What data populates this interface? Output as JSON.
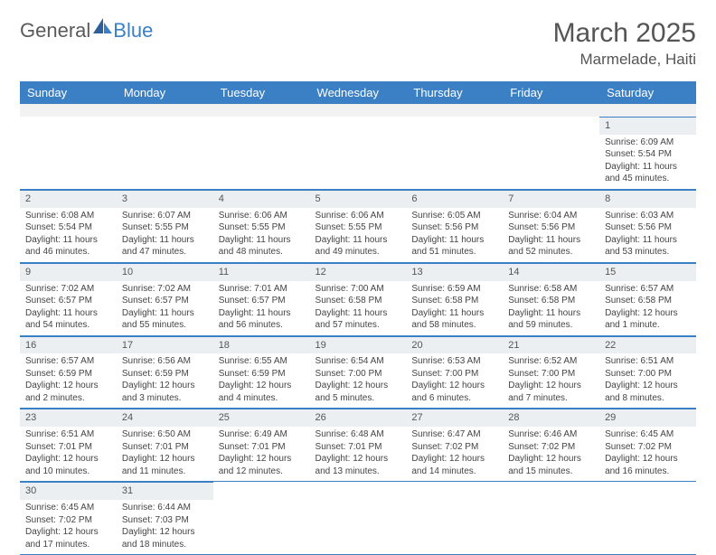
{
  "logo": {
    "text1": "General",
    "text2": "Blue",
    "sail_color": "#3b7fc4"
  },
  "title": "March 2025",
  "location": "Marmelade, Haiti",
  "colors": {
    "header_bg": "#3b7fc4",
    "header_fg": "#ffffff",
    "daynum_bg": "#eceff1",
    "row_divider": "#3b7fc4",
    "text": "#444444",
    "page_bg": "#ffffff"
  },
  "typography": {
    "title_fontsize": 30,
    "location_fontsize": 17,
    "dayheader_fontsize": 13,
    "cell_fontsize": 10
  },
  "day_headers": [
    "Sunday",
    "Monday",
    "Tuesday",
    "Wednesday",
    "Thursday",
    "Friday",
    "Saturday"
  ],
  "weeks": [
    [
      null,
      null,
      null,
      null,
      null,
      null,
      {
        "n": "1",
        "sunrise": "Sunrise: 6:09 AM",
        "sunset": "Sunset: 5:54 PM",
        "daylight": "Daylight: 11 hours and 45 minutes."
      }
    ],
    [
      {
        "n": "2",
        "sunrise": "Sunrise: 6:08 AM",
        "sunset": "Sunset: 5:54 PM",
        "daylight": "Daylight: 11 hours and 46 minutes."
      },
      {
        "n": "3",
        "sunrise": "Sunrise: 6:07 AM",
        "sunset": "Sunset: 5:55 PM",
        "daylight": "Daylight: 11 hours and 47 minutes."
      },
      {
        "n": "4",
        "sunrise": "Sunrise: 6:06 AM",
        "sunset": "Sunset: 5:55 PM",
        "daylight": "Daylight: 11 hours and 48 minutes."
      },
      {
        "n": "5",
        "sunrise": "Sunrise: 6:06 AM",
        "sunset": "Sunset: 5:55 PM",
        "daylight": "Daylight: 11 hours and 49 minutes."
      },
      {
        "n": "6",
        "sunrise": "Sunrise: 6:05 AM",
        "sunset": "Sunset: 5:56 PM",
        "daylight": "Daylight: 11 hours and 51 minutes."
      },
      {
        "n": "7",
        "sunrise": "Sunrise: 6:04 AM",
        "sunset": "Sunset: 5:56 PM",
        "daylight": "Daylight: 11 hours and 52 minutes."
      },
      {
        "n": "8",
        "sunrise": "Sunrise: 6:03 AM",
        "sunset": "Sunset: 5:56 PM",
        "daylight": "Daylight: 11 hours and 53 minutes."
      }
    ],
    [
      {
        "n": "9",
        "sunrise": "Sunrise: 7:02 AM",
        "sunset": "Sunset: 6:57 PM",
        "daylight": "Daylight: 11 hours and 54 minutes."
      },
      {
        "n": "10",
        "sunrise": "Sunrise: 7:02 AM",
        "sunset": "Sunset: 6:57 PM",
        "daylight": "Daylight: 11 hours and 55 minutes."
      },
      {
        "n": "11",
        "sunrise": "Sunrise: 7:01 AM",
        "sunset": "Sunset: 6:57 PM",
        "daylight": "Daylight: 11 hours and 56 minutes."
      },
      {
        "n": "12",
        "sunrise": "Sunrise: 7:00 AM",
        "sunset": "Sunset: 6:58 PM",
        "daylight": "Daylight: 11 hours and 57 minutes."
      },
      {
        "n": "13",
        "sunrise": "Sunrise: 6:59 AM",
        "sunset": "Sunset: 6:58 PM",
        "daylight": "Daylight: 11 hours and 58 minutes."
      },
      {
        "n": "14",
        "sunrise": "Sunrise: 6:58 AM",
        "sunset": "Sunset: 6:58 PM",
        "daylight": "Daylight: 11 hours and 59 minutes."
      },
      {
        "n": "15",
        "sunrise": "Sunrise: 6:57 AM",
        "sunset": "Sunset: 6:58 PM",
        "daylight": "Daylight: 12 hours and 1 minute."
      }
    ],
    [
      {
        "n": "16",
        "sunrise": "Sunrise: 6:57 AM",
        "sunset": "Sunset: 6:59 PM",
        "daylight": "Daylight: 12 hours and 2 minutes."
      },
      {
        "n": "17",
        "sunrise": "Sunrise: 6:56 AM",
        "sunset": "Sunset: 6:59 PM",
        "daylight": "Daylight: 12 hours and 3 minutes."
      },
      {
        "n": "18",
        "sunrise": "Sunrise: 6:55 AM",
        "sunset": "Sunset: 6:59 PM",
        "daylight": "Daylight: 12 hours and 4 minutes."
      },
      {
        "n": "19",
        "sunrise": "Sunrise: 6:54 AM",
        "sunset": "Sunset: 7:00 PM",
        "daylight": "Daylight: 12 hours and 5 minutes."
      },
      {
        "n": "20",
        "sunrise": "Sunrise: 6:53 AM",
        "sunset": "Sunset: 7:00 PM",
        "daylight": "Daylight: 12 hours and 6 minutes."
      },
      {
        "n": "21",
        "sunrise": "Sunrise: 6:52 AM",
        "sunset": "Sunset: 7:00 PM",
        "daylight": "Daylight: 12 hours and 7 minutes."
      },
      {
        "n": "22",
        "sunrise": "Sunrise: 6:51 AM",
        "sunset": "Sunset: 7:00 PM",
        "daylight": "Daylight: 12 hours and 8 minutes."
      }
    ],
    [
      {
        "n": "23",
        "sunrise": "Sunrise: 6:51 AM",
        "sunset": "Sunset: 7:01 PM",
        "daylight": "Daylight: 12 hours and 10 minutes."
      },
      {
        "n": "24",
        "sunrise": "Sunrise: 6:50 AM",
        "sunset": "Sunset: 7:01 PM",
        "daylight": "Daylight: 12 hours and 11 minutes."
      },
      {
        "n": "25",
        "sunrise": "Sunrise: 6:49 AM",
        "sunset": "Sunset: 7:01 PM",
        "daylight": "Daylight: 12 hours and 12 minutes."
      },
      {
        "n": "26",
        "sunrise": "Sunrise: 6:48 AM",
        "sunset": "Sunset: 7:01 PM",
        "daylight": "Daylight: 12 hours and 13 minutes."
      },
      {
        "n": "27",
        "sunrise": "Sunrise: 6:47 AM",
        "sunset": "Sunset: 7:02 PM",
        "daylight": "Daylight: 12 hours and 14 minutes."
      },
      {
        "n": "28",
        "sunrise": "Sunrise: 6:46 AM",
        "sunset": "Sunset: 7:02 PM",
        "daylight": "Daylight: 12 hours and 15 minutes."
      },
      {
        "n": "29",
        "sunrise": "Sunrise: 6:45 AM",
        "sunset": "Sunset: 7:02 PM",
        "daylight": "Daylight: 12 hours and 16 minutes."
      }
    ],
    [
      {
        "n": "30",
        "sunrise": "Sunrise: 6:45 AM",
        "sunset": "Sunset: 7:02 PM",
        "daylight": "Daylight: 12 hours and 17 minutes."
      },
      {
        "n": "31",
        "sunrise": "Sunrise: 6:44 AM",
        "sunset": "Sunset: 7:03 PM",
        "daylight": "Daylight: 12 hours and 18 minutes."
      },
      null,
      null,
      null,
      null,
      null
    ]
  ]
}
